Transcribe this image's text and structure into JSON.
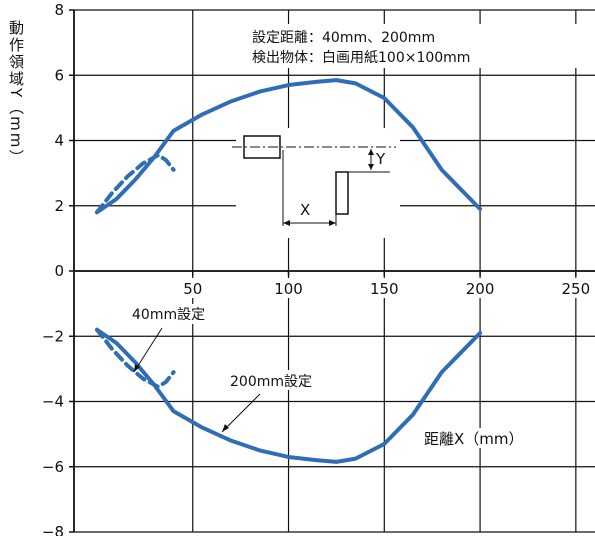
{
  "chart_data": {
    "type": "line",
    "ylabel": "動作領域Y（mm）",
    "xlabel": "距離X（mm）",
    "conditions": [
      "設定距離：40mm、200mm",
      "検出物体：白画用紙100×100mm"
    ],
    "xlim": [
      -12,
      260
    ],
    "ylim": [
      -8,
      8
    ],
    "x_ticks": [
      "50",
      "100",
      "150",
      "200",
      "250"
    ],
    "x_tick_values": [
      50,
      100,
      150,
      200,
      250
    ],
    "y_ticks": [
      "8",
      "6",
      "4",
      "2",
      "0",
      "−2",
      "−4",
      "−6",
      "−8"
    ],
    "y_tick_values": [
      8,
      6,
      4,
      2,
      0,
      -2,
      -4,
      -6,
      -8
    ],
    "grid": true,
    "series": [
      {
        "name": "200mm設定",
        "style": "solid",
        "color": "#2f6db5",
        "x": [
          0,
          10,
          20,
          30,
          40,
          55,
          70,
          85,
          100,
          115,
          125,
          135,
          150,
          165,
          180,
          190,
          200
        ],
        "y": [
          1.8,
          2.2,
          2.8,
          3.5,
          4.3,
          4.8,
          5.2,
          5.5,
          5.7,
          5.8,
          5.85,
          5.75,
          5.3,
          4.4,
          3.1,
          2.5,
          1.9
        ],
        "y_lower": [
          -1.8,
          -2.2,
          -2.8,
          -3.5,
          -4.3,
          -4.8,
          -5.2,
          -5.5,
          -5.7,
          -5.8,
          -5.85,
          -5.75,
          -5.3,
          -4.4,
          -3.1,
          -2.5,
          -1.9
        ]
      },
      {
        "name": "40mm設定",
        "style": "dashed",
        "color": "#2f6db5",
        "x": [
          0,
          8,
          16,
          24,
          32,
          36,
          40
        ],
        "y": [
          1.8,
          2.4,
          2.9,
          3.3,
          3.55,
          3.4,
          3.1
        ],
        "y_lower": [
          -1.8,
          -2.4,
          -2.9,
          -3.3,
          -3.55,
          -3.4,
          -3.1
        ]
      }
    ],
    "annotations": {
      "label_40": "40mm設定",
      "label_200": "200mm設定",
      "inset_x": "X",
      "inset_y": "Y"
    }
  }
}
